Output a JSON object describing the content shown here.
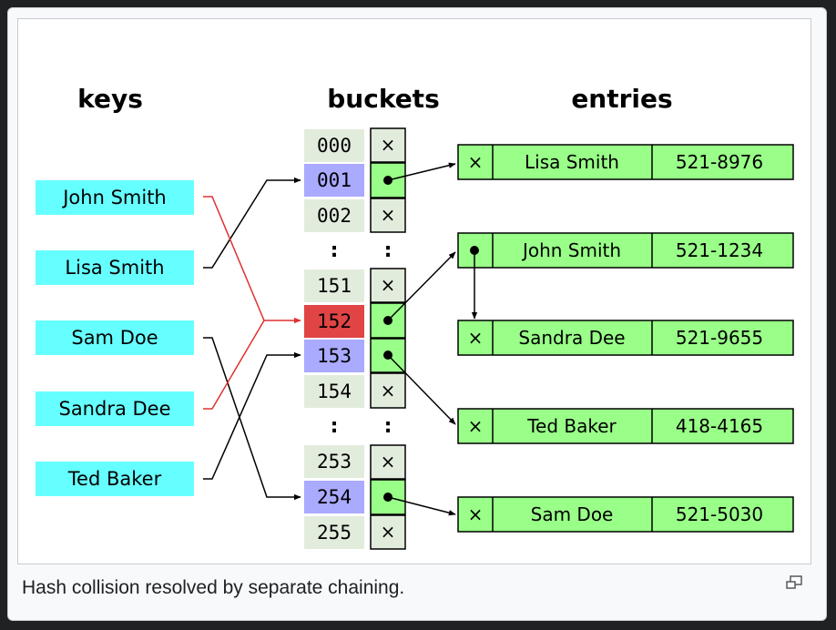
{
  "headers": {
    "keys": "keys",
    "buckets": "buckets",
    "entries": "entries"
  },
  "keys": [
    "John Smith",
    "Lisa Smith",
    "Sam Doe",
    "Sandra Dee",
    "Ted Baker"
  ],
  "buckets": {
    "group1": [
      "000",
      "001",
      "002"
    ],
    "group2": [
      "151",
      "152",
      "153",
      "154"
    ],
    "group3": [
      "253",
      "254",
      "255"
    ],
    "ellipsis": ":",
    "null_marker": "×"
  },
  "entries": [
    {
      "name": "Lisa Smith",
      "phone": "521-8976"
    },
    {
      "name": "John Smith",
      "phone": "521-1234"
    },
    {
      "name": "Sandra Dee",
      "phone": "521-9655"
    },
    {
      "name": "Ted Baker",
      "phone": "418-4165"
    },
    {
      "name": "Sam Doe",
      "phone": "521-5030"
    }
  ],
  "caption": "Hash collision resolved by separate chaining.",
  "colors": {
    "key_fill": "#66ffff",
    "bucket_label": "#e2ecdd",
    "bucket_hit": "#aaaaff",
    "bucket_collision": "#e04444",
    "pointer_cell": "#e2ecdd",
    "pointer_live": "#99ff88",
    "entry_fill": "#99ff88",
    "collision_line": "#e03030"
  },
  "icons": {
    "enlarge": "enlarge-icon"
  }
}
